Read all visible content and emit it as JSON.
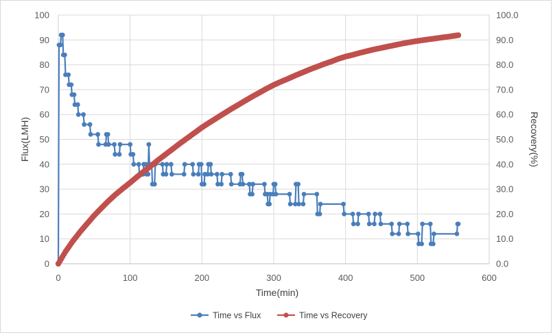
{
  "chart_data": {
    "type": "line",
    "title": "",
    "xlabel": "Time(min)",
    "ylabel": "Flux(LMH)",
    "y2label": "Recovery(%)",
    "xlim": [
      0,
      600
    ],
    "ylim": [
      0,
      100
    ],
    "y2lim": [
      0,
      100
    ],
    "x_ticks": [
      "0",
      "100",
      "200",
      "300",
      "400",
      "500",
      "600"
    ],
    "y_ticks": [
      "0",
      "10",
      "20",
      "30",
      "40",
      "50",
      "60",
      "70",
      "80",
      "90",
      "100"
    ],
    "y2_ticks": [
      "0.0",
      "10.0",
      "20.0",
      "30.0",
      "40.0",
      "50.0",
      "60.0",
      "70.0",
      "80.0",
      "90.0",
      "100.0"
    ],
    "grid": true,
    "legend_position": "bottom",
    "series": [
      {
        "name": "Time vs Flux",
        "axis": "left",
        "color": "#4a7ebb",
        "points": [
          [
            0,
            0
          ],
          [
            1,
            88
          ],
          [
            3,
            88
          ],
          [
            4,
            92
          ],
          [
            6,
            92
          ],
          [
            7,
            84
          ],
          [
            9,
            84
          ],
          [
            10,
            76
          ],
          [
            14,
            76
          ],
          [
            15,
            72
          ],
          [
            18,
            72
          ],
          [
            19,
            68
          ],
          [
            22,
            68
          ],
          [
            23,
            64
          ],
          [
            27,
            64
          ],
          [
            28,
            60
          ],
          [
            35,
            60
          ],
          [
            36,
            56
          ],
          [
            44,
            56
          ],
          [
            45,
            52
          ],
          [
            55,
            52
          ],
          [
            56,
            48
          ],
          [
            66,
            48
          ],
          [
            67,
            52
          ],
          [
            69,
            52
          ],
          [
            70,
            48
          ],
          [
            78,
            48
          ],
          [
            79,
            44
          ],
          [
            85,
            44
          ],
          [
            86,
            48
          ],
          [
            100,
            48
          ],
          [
            101,
            44
          ],
          [
            104,
            44
          ],
          [
            105,
            40
          ],
          [
            112,
            40
          ],
          [
            113,
            36
          ],
          [
            118,
            36
          ],
          [
            119,
            40
          ],
          [
            122,
            40
          ],
          [
            123,
            36
          ],
          [
            125,
            36
          ],
          [
            126,
            48
          ],
          [
            127,
            40
          ],
          [
            130,
            40
          ],
          [
            131,
            32
          ],
          [
            134,
            32
          ],
          [
            135,
            40
          ],
          [
            145,
            40
          ],
          [
            146,
            36
          ],
          [
            150,
            36
          ],
          [
            151,
            40
          ],
          [
            157,
            40
          ],
          [
            158,
            36
          ],
          [
            175,
            36
          ],
          [
            176,
            40
          ],
          [
            187,
            40
          ],
          [
            188,
            36
          ],
          [
            195,
            36
          ],
          [
            196,
            40
          ],
          [
            199,
            40
          ],
          [
            200,
            32
          ],
          [
            203,
            32
          ],
          [
            204,
            36
          ],
          [
            208,
            36
          ],
          [
            209,
            40
          ],
          [
            212,
            40
          ],
          [
            213,
            36
          ],
          [
            221,
            36
          ],
          [
            222,
            32
          ],
          [
            227,
            32
          ],
          [
            228,
            36
          ],
          [
            240,
            36
          ],
          [
            241,
            32
          ],
          [
            253,
            32
          ],
          [
            254,
            36
          ],
          [
            256,
            36
          ],
          [
            257,
            32
          ],
          [
            266,
            32
          ],
          [
            267,
            28
          ],
          [
            270,
            28
          ],
          [
            271,
            32
          ],
          [
            287,
            32
          ],
          [
            288,
            28
          ],
          [
            291,
            28
          ],
          [
            292,
            24
          ],
          [
            294,
            24
          ],
          [
            295,
            28
          ],
          [
            299,
            28
          ],
          [
            300,
            32
          ],
          [
            302,
            32
          ],
          [
            303,
            28
          ],
          [
            322,
            28
          ],
          [
            323,
            24
          ],
          [
            330,
            24
          ],
          [
            331,
            32
          ],
          [
            334,
            32
          ],
          [
            335,
            24
          ],
          [
            341,
            24
          ],
          [
            342,
            28
          ],
          [
            360,
            28
          ],
          [
            361,
            20
          ],
          [
            364,
            20
          ],
          [
            365,
            24
          ],
          [
            397,
            24
          ],
          [
            398,
            20
          ],
          [
            410,
            20
          ],
          [
            411,
            16
          ],
          [
            417,
            16
          ],
          [
            418,
            20
          ],
          [
            432,
            20
          ],
          [
            433,
            16
          ],
          [
            440,
            16
          ],
          [
            441,
            20
          ],
          [
            448,
            20
          ],
          [
            449,
            16
          ],
          [
            464,
            16
          ],
          [
            465,
            12
          ],
          [
            474,
            12
          ],
          [
            475,
            16
          ],
          [
            486,
            16
          ],
          [
            487,
            12
          ],
          [
            501,
            12
          ],
          [
            502,
            8
          ],
          [
            506,
            8
          ],
          [
            507,
            16
          ],
          [
            518,
            16
          ],
          [
            519,
            8
          ],
          [
            522,
            8
          ],
          [
            523,
            12
          ],
          [
            555,
            12
          ],
          [
            556,
            16
          ],
          [
            557,
            16
          ]
        ]
      },
      {
        "name": "Time vs Recovery",
        "axis": "right",
        "color": "#c0504d",
        "points": [
          [
            0,
            0
          ],
          [
            10,
            4.9
          ],
          [
            20,
            9.0
          ],
          [
            30,
            12.7
          ],
          [
            40,
            16.1
          ],
          [
            50,
            19.4
          ],
          [
            60,
            22.4
          ],
          [
            70,
            25.3
          ],
          [
            80,
            27.9
          ],
          [
            90,
            30.3
          ],
          [
            100,
            32.6
          ],
          [
            110,
            35.0
          ],
          [
            120,
            37.3
          ],
          [
            130,
            39.6
          ],
          [
            140,
            41.9
          ],
          [
            150,
            44.1
          ],
          [
            160,
            46.3
          ],
          [
            170,
            48.5
          ],
          [
            180,
            50.6
          ],
          [
            190,
            52.7
          ],
          [
            200,
            54.8
          ],
          [
            210,
            56.7
          ],
          [
            220,
            58.5
          ],
          [
            230,
            60.3
          ],
          [
            240,
            62.1
          ],
          [
            250,
            63.8
          ],
          [
            260,
            65.5
          ],
          [
            270,
            67.2
          ],
          [
            280,
            68.8
          ],
          [
            290,
            70.4
          ],
          [
            300,
            71.9
          ],
          [
            310,
            73.2
          ],
          [
            320,
            74.4
          ],
          [
            330,
            75.7
          ],
          [
            340,
            76.9
          ],
          [
            350,
            78.1
          ],
          [
            360,
            79.2
          ],
          [
            370,
            80.3
          ],
          [
            380,
            81.3
          ],
          [
            390,
            82.4
          ],
          [
            400,
            83.3
          ],
          [
            410,
            84.0
          ],
          [
            420,
            84.8
          ],
          [
            430,
            85.5
          ],
          [
            440,
            86.2
          ],
          [
            450,
            86.8
          ],
          [
            460,
            87.4
          ],
          [
            470,
            88.0
          ],
          [
            480,
            88.6
          ],
          [
            490,
            89.1
          ],
          [
            500,
            89.6
          ],
          [
            510,
            90.0
          ],
          [
            520,
            90.4
          ],
          [
            530,
            90.8
          ],
          [
            540,
            91.2
          ],
          [
            550,
            91.6
          ],
          [
            557,
            91.9
          ]
        ]
      }
    ]
  }
}
